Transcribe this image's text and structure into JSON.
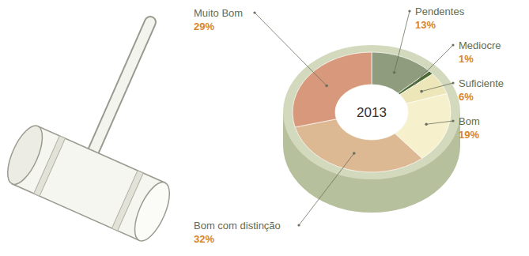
{
  "chart_data": {
    "type": "pie",
    "title": "2013",
    "categories": [
      "Pendentes",
      "Mediocre",
      "Suficiente",
      "Bom",
      "Bom com distinção",
      "Muito Bom"
    ],
    "values": [
      13,
      1,
      6,
      19,
      32,
      29
    ],
    "value_labels": [
      "13%",
      "1%",
      "6%",
      "19%",
      "32%",
      "29%"
    ],
    "colors": [
      "#8f9c7e",
      "#4c6a34",
      "#ece6b8",
      "#f6f1cc",
      "#dcb893",
      "#d8987c"
    ],
    "data_labels": true
  }
}
